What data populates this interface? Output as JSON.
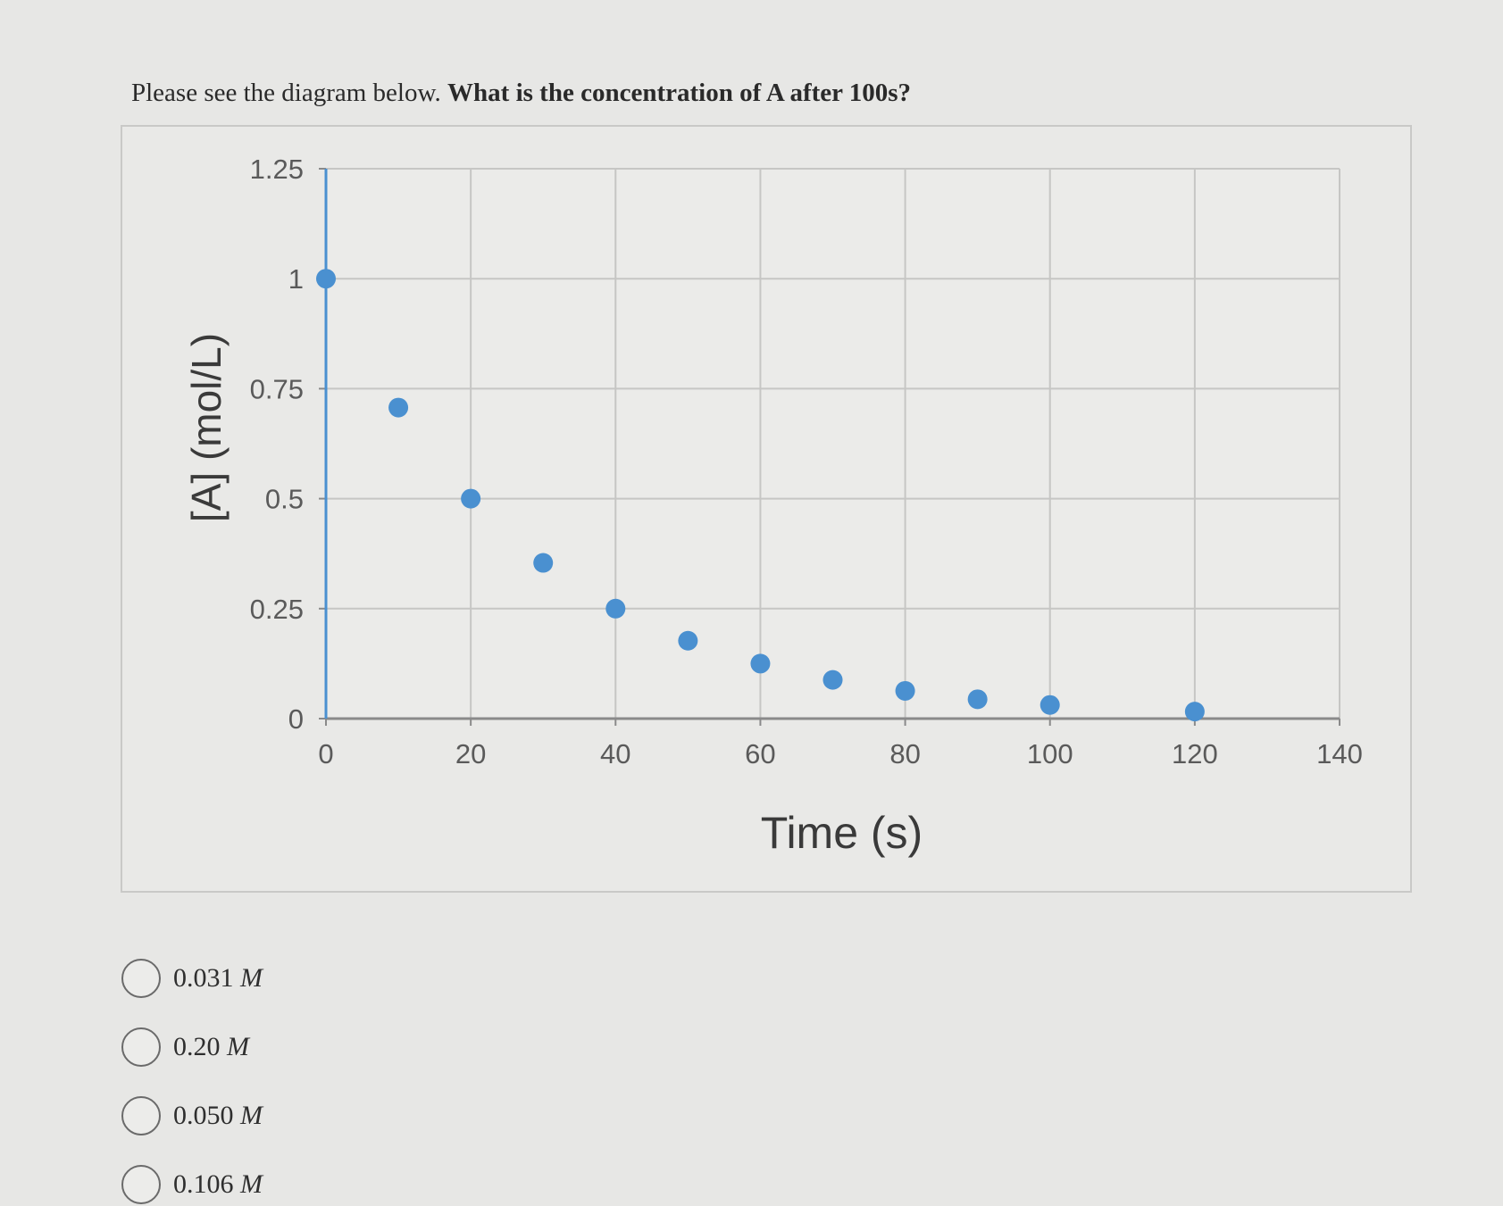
{
  "question": {
    "prefix": "Please see the diagram below.",
    "bold": "What is the concentration of A after 100s?"
  },
  "chart_data": {
    "type": "scatter",
    "title": "",
    "xlabel": "Time (s)",
    "ylabel": "[A] (mol/L)",
    "xlim": [
      0,
      140
    ],
    "ylim": [
      0,
      1.25
    ],
    "x_ticks": [
      "0",
      "20",
      "40",
      "60",
      "80",
      "100",
      "120",
      "140"
    ],
    "y_ticks": [
      "0",
      "0.25",
      "0.5",
      "0.75",
      "1",
      "1.25"
    ],
    "grid": true,
    "legend": "none",
    "marker_color": "#4a90d0",
    "points": [
      {
        "x": 0,
        "y": 1.0
      },
      {
        "x": 10,
        "y": 0.707
      },
      {
        "x": 20,
        "y": 0.5
      },
      {
        "x": 30,
        "y": 0.354
      },
      {
        "x": 40,
        "y": 0.25
      },
      {
        "x": 50,
        "y": 0.177
      },
      {
        "x": 60,
        "y": 0.125
      },
      {
        "x": 70,
        "y": 0.088
      },
      {
        "x": 80,
        "y": 0.063
      },
      {
        "x": 90,
        "y": 0.044
      },
      {
        "x": 100,
        "y": 0.031
      },
      {
        "x": 120,
        "y": 0.016
      }
    ]
  },
  "options": [
    {
      "value": "0.031",
      "unit": "M"
    },
    {
      "value": "0.20",
      "unit": "M"
    },
    {
      "value": "0.050",
      "unit": "M"
    },
    {
      "value": "0.106",
      "unit": "M"
    }
  ]
}
